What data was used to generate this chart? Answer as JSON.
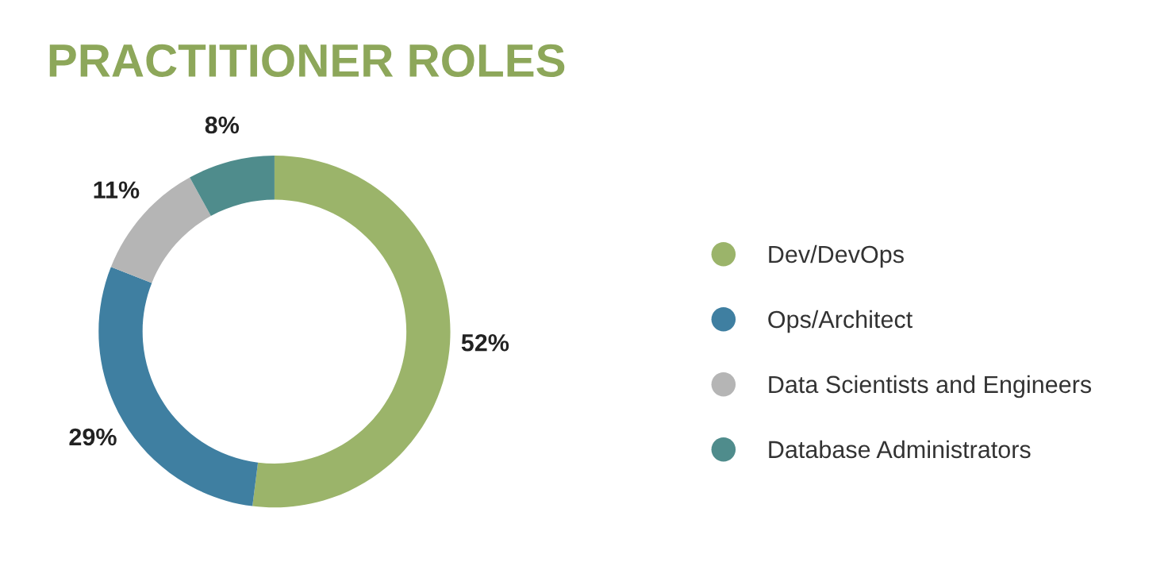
{
  "chart_data": {
    "type": "donut",
    "title": "PRACTITIONER ROLES",
    "categories": [
      "Dev/DevOps",
      "Ops/Architect",
      "Data Scientists and Engineers",
      "Database Administrators"
    ],
    "values": [
      52,
      29,
      11,
      8
    ],
    "colors": [
      "#9bb46a",
      "#3f7fa1",
      "#b5b5b5",
      "#4f8c8c"
    ],
    "value_labels": [
      "52%",
      "29%",
      "11%",
      "8%"
    ],
    "legend": "right"
  }
}
